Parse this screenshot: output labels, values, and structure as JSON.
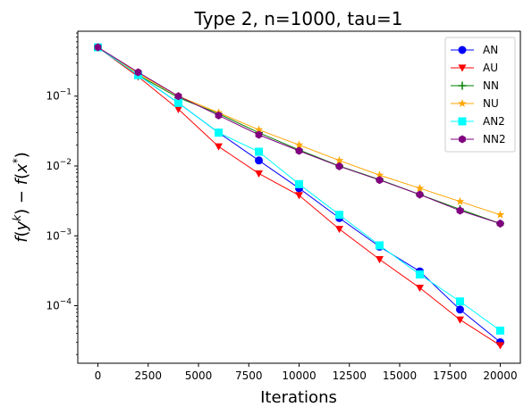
{
  "chart_data": {
    "type": "line",
    "title": "Type 2, n=1000, tau=1",
    "xlabel": "Iterations",
    "ylabel": "f(y^k) − f(x*)",
    "yscale": "log",
    "xlim": [
      -1000,
      21000
    ],
    "ylim": [
      1.5e-05,
      0.85
    ],
    "x_ticks": [
      0,
      2500,
      5000,
      7500,
      10000,
      12500,
      15000,
      17500,
      20000
    ],
    "x_tick_labels": [
      "0",
      "2500",
      "5000",
      "7500",
      "10000",
      "12500",
      "15000",
      "17500",
      "20000"
    ],
    "y_ticks": [
      0.0001,
      0.001,
      0.01,
      0.1
    ],
    "y_tick_labels": [
      "10^-4",
      "10^-3",
      "10^-2",
      "10^-1"
    ],
    "legend_position": "upper right",
    "x": [
      0,
      2000,
      4000,
      6000,
      8000,
      10000,
      12000,
      14000,
      16000,
      18000,
      20000
    ],
    "series": [
      {
        "name": "AN",
        "color": "#0000ff",
        "marker": "circle",
        "values": [
          0.5,
          0.2,
          0.08,
          0.03,
          0.012,
          0.0048,
          0.0018,
          0.0007,
          0.00031,
          8.8e-05,
          3e-05
        ]
      },
      {
        "name": "AU",
        "color": "#ff0000",
        "marker": "triangle-down",
        "values": [
          0.5,
          0.19,
          0.065,
          0.019,
          0.0078,
          0.0038,
          0.00125,
          0.00046,
          0.00018,
          6.3e-05,
          2.7e-05
        ]
      },
      {
        "name": "NN",
        "color": "#008000",
        "marker": "plus",
        "values": [
          0.5,
          0.2,
          0.095,
          0.056,
          0.03,
          0.017,
          0.01,
          0.0064,
          0.0039,
          0.0024,
          0.0015
        ]
      },
      {
        "name": "NU",
        "color": "#ffa500",
        "marker": "star",
        "values": [
          0.5,
          0.21,
          0.1,
          0.058,
          0.033,
          0.02,
          0.012,
          0.0074,
          0.0048,
          0.0031,
          0.002
        ]
      },
      {
        "name": "AN2",
        "color": "#00ffff",
        "marker": "square",
        "values": [
          0.5,
          0.2,
          0.08,
          0.03,
          0.016,
          0.0055,
          0.002,
          0.00073,
          0.00028,
          0.000115,
          4.4e-05
        ]
      },
      {
        "name": "NN2",
        "color": "#800080",
        "marker": "hexagon",
        "values": [
          0.5,
          0.22,
          0.1,
          0.053,
          0.028,
          0.0165,
          0.0099,
          0.0063,
          0.0039,
          0.0023,
          0.0015
        ]
      }
    ]
  }
}
